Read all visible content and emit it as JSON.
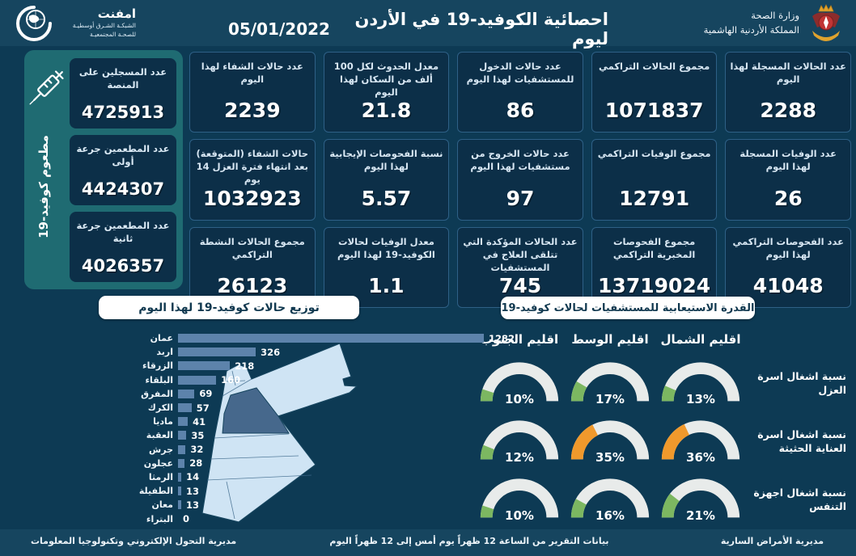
{
  "header": {
    "title": "احصائية الكوفيد-19 في الأردن ليوم",
    "date": "05/01/2022",
    "logo": {
      "name": "امفنت",
      "line1": "الشبكـة الشـرق أوسطيـة",
      "line2": "للصحـة المجتمعيـة"
    },
    "ministry": {
      "line1": "وزارة الصحة",
      "line2": "المملكة الأردنية الهاشمية"
    }
  },
  "vaccination": {
    "side_label": "مطعوم كوفيد-19",
    "cards": [
      {
        "label": "عدد المسجلين على المنصة",
        "value": "4725913"
      },
      {
        "label": "عدد المطعمين جرعة أولى",
        "value": "4424307"
      },
      {
        "label": "عدد المطعمين جرعة ثانية",
        "value": "4026357"
      }
    ]
  },
  "stats_cards": [
    {
      "label": "عدد الحالات المسجلة لهذا اليوم",
      "value": "2288"
    },
    {
      "label": "مجموع الحالات التراكمي",
      "value": "1071837"
    },
    {
      "label": "عدد حالات الدخول للمستشفيات لهذا اليوم",
      "value": "86"
    },
    {
      "label": "معدل الحدوث لكل 100 ألف من السكان لهذا اليوم",
      "value": "21.8"
    },
    {
      "label": "عدد حالات الشفاء لهذا اليوم",
      "value": "2239"
    },
    {
      "label": "عدد الوفيات المسجلة لهذا اليوم",
      "value": "26"
    },
    {
      "label": "مجموع الوفيات التراكمي",
      "value": "12791"
    },
    {
      "label": "عدد حالات الخروج من مستشفيات لهذا اليوم",
      "value": "97"
    },
    {
      "label": "نسبة الفحوصات الإيجابية لهذا اليوم",
      "value": "5.57"
    },
    {
      "label": "حالات الشفاء (المتوقعة) بعد انتهاء فترة العزل 14 يوم",
      "value": "1032923"
    },
    {
      "label": "عدد الفحوصات التراكمي لهذا اليوم",
      "value": "41048"
    },
    {
      "label": "مجموع الفحوصات المخبرية التراكمي",
      "value": "13719024"
    },
    {
      "label": "عدد الحالات المؤكدة التي تتلقى العلاج في المستشفيات",
      "value": "745"
    },
    {
      "label": "معدل الوفيات لحالات الكوفيد-19 لهذا اليوم",
      "value": "1.1"
    },
    {
      "label": "مجموع الحالات النشطة التراكمي",
      "value": "26123"
    }
  ],
  "chart_data": [
    {
      "type": "bar",
      "title": "توزيع حالات كوفيد-19 لهذا اليوم",
      "orientation": "horizontal",
      "categories": [
        "عمان",
        "اربد",
        "الزرقاء",
        "البلقاء",
        "المفرق",
        "الكرك",
        "ماديا",
        "العقبة",
        "جرش",
        "عجلون",
        "الرمثا",
        "الطفيلة",
        "معان",
        "البتراء"
      ],
      "values": [
        1282,
        326,
        218,
        160,
        69,
        57,
        41,
        35,
        32,
        28,
        14,
        13,
        13,
        0
      ],
      "xlim": [
        0,
        1282
      ],
      "bar_color": "#5d83ab",
      "map_highlighted_region": "عمان"
    },
    {
      "type": "gauge-grid",
      "title": "القدرة الاستيعابية للمستشفيات لحالات كوفيد-19",
      "regions": [
        "اقليم الشمال",
        "اقليم الوسط",
        "اقليم الجنوب"
      ],
      "rows": [
        {
          "label": "نسبة اشغال اسرة العزل",
          "values": [
            13,
            17,
            10
          ]
        },
        {
          "label": "نسبة اشغال اسرة العناية الحثيثة",
          "values": [
            36,
            35,
            12
          ]
        },
        {
          "label": "نسبة اشغال اجهزة التنفس",
          "values": [
            21,
            16,
            10
          ]
        }
      ],
      "unit": "%",
      "colors": {
        "low": "#7cb761",
        "high": "#f0992c",
        "track": "#e8ebea",
        "threshold": 30
      }
    }
  ],
  "footer": {
    "left": "مديرية التحول الإلكتروني وتكنولوجيا المعلومات",
    "center": "بيانات التقرير من الساعة 12 ظهراً يوم أمس إلى 12 ظهراً اليوم",
    "right": "مديرية الأمراض السارية"
  },
  "colors": {
    "background": "#0d3a54",
    "band": "#16455f",
    "card": "#0c2f48",
    "card_border": "#2e6086",
    "panel_teal": "#1f6b72",
    "bar": "#5d83ab",
    "map_fill": "#cfe4f4",
    "map_highlight": "#46688c",
    "gauge_green": "#7cb761",
    "gauge_orange": "#f0992c",
    "gauge_track": "#e8ebea"
  }
}
